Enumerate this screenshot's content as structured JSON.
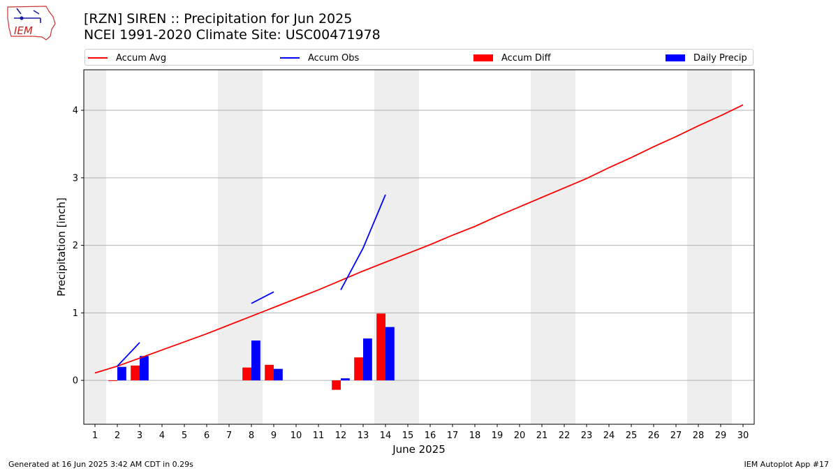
{
  "header": {
    "title_line1": "[RZN] SIREN :: Precipitation for Jun 2025",
    "title_line2": "NCEI 1991-2020 Climate Site: USC00471978"
  },
  "logo": {
    "text": "IEM"
  },
  "footer": {
    "generated": "Generated at 16 Jun 2025 3:42 AM CDT in 0.29s",
    "app": "IEM Autoplot App #17"
  },
  "legend": {
    "items": [
      {
        "label": "Accum Avg",
        "kind": "line",
        "color": "#ff0000"
      },
      {
        "label": "Accum Obs",
        "kind": "line",
        "color": "#0000ff"
      },
      {
        "label": "Accum Diff",
        "kind": "box",
        "color": "#ff0000"
      },
      {
        "label": "Daily Precip",
        "kind": "box",
        "color": "#0000ff"
      }
    ]
  },
  "chart_data": {
    "type": "bar",
    "xlabel": "June 2025",
    "ylabel": "Precipitation [inch]",
    "xlim": [
      0.5,
      30.5
    ],
    "ylim": [
      -0.65,
      4.6
    ],
    "yticks": [
      0,
      1,
      2,
      3,
      4
    ],
    "xticks": [
      1,
      2,
      3,
      4,
      5,
      6,
      7,
      8,
      9,
      10,
      11,
      12,
      13,
      14,
      15,
      16,
      17,
      18,
      19,
      20,
      21,
      22,
      23,
      24,
      25,
      26,
      27,
      28,
      29,
      30
    ],
    "grid": "horizontal",
    "weekend_shading": [
      [
        0.5,
        1.5
      ],
      [
        6.5,
        8.5
      ],
      [
        13.5,
        15.5
      ],
      [
        20.5,
        22.5
      ],
      [
        27.5,
        29.5
      ]
    ],
    "colors": {
      "avg": "#ff0000",
      "obs": "#0000ff",
      "diff": "#ff0000",
      "daily": "#0000ff",
      "shade": "#eeeeee"
    },
    "accum_avg": {
      "name": "Accum Avg",
      "x": [
        1,
        2,
        3,
        4,
        5,
        6,
        7,
        8,
        9,
        10,
        11,
        12,
        13,
        14,
        15,
        16,
        17,
        18,
        19,
        20,
        21,
        22,
        23,
        24,
        25,
        26,
        27,
        28,
        29,
        30
      ],
      "y": [
        0.11,
        0.21,
        0.33,
        0.45,
        0.57,
        0.69,
        0.82,
        0.95,
        1.08,
        1.21,
        1.34,
        1.48,
        1.62,
        1.75,
        1.88,
        2.01,
        2.15,
        2.28,
        2.43,
        2.57,
        2.71,
        2.85,
        2.99,
        3.15,
        3.3,
        3.46,
        3.61,
        3.77,
        3.92,
        4.08
      ]
    },
    "accum_obs": {
      "name": "Accum Obs",
      "segments": [
        {
          "x": [
            2,
            3
          ],
          "y": [
            0.21,
            0.56
          ]
        },
        {
          "x": [
            8,
            9
          ],
          "y": [
            1.14,
            1.31
          ]
        },
        {
          "x": [
            12,
            13,
            14
          ],
          "y": [
            1.34,
            1.96,
            2.75
          ]
        }
      ]
    },
    "accum_diff": {
      "name": "Accum Diff",
      "x": [
        2,
        3,
        8,
        9,
        12,
        13,
        14
      ],
      "y": [
        -0.01,
        0.22,
        0.19,
        0.23,
        -0.14,
        0.34,
        0.99
      ]
    },
    "daily_precip": {
      "name": "Daily Precip",
      "x": [
        2,
        3,
        8,
        9,
        12,
        13,
        14
      ],
      "y": [
        0.2,
        0.36,
        0.59,
        0.17,
        0.03,
        0.62,
        0.79
      ]
    }
  }
}
